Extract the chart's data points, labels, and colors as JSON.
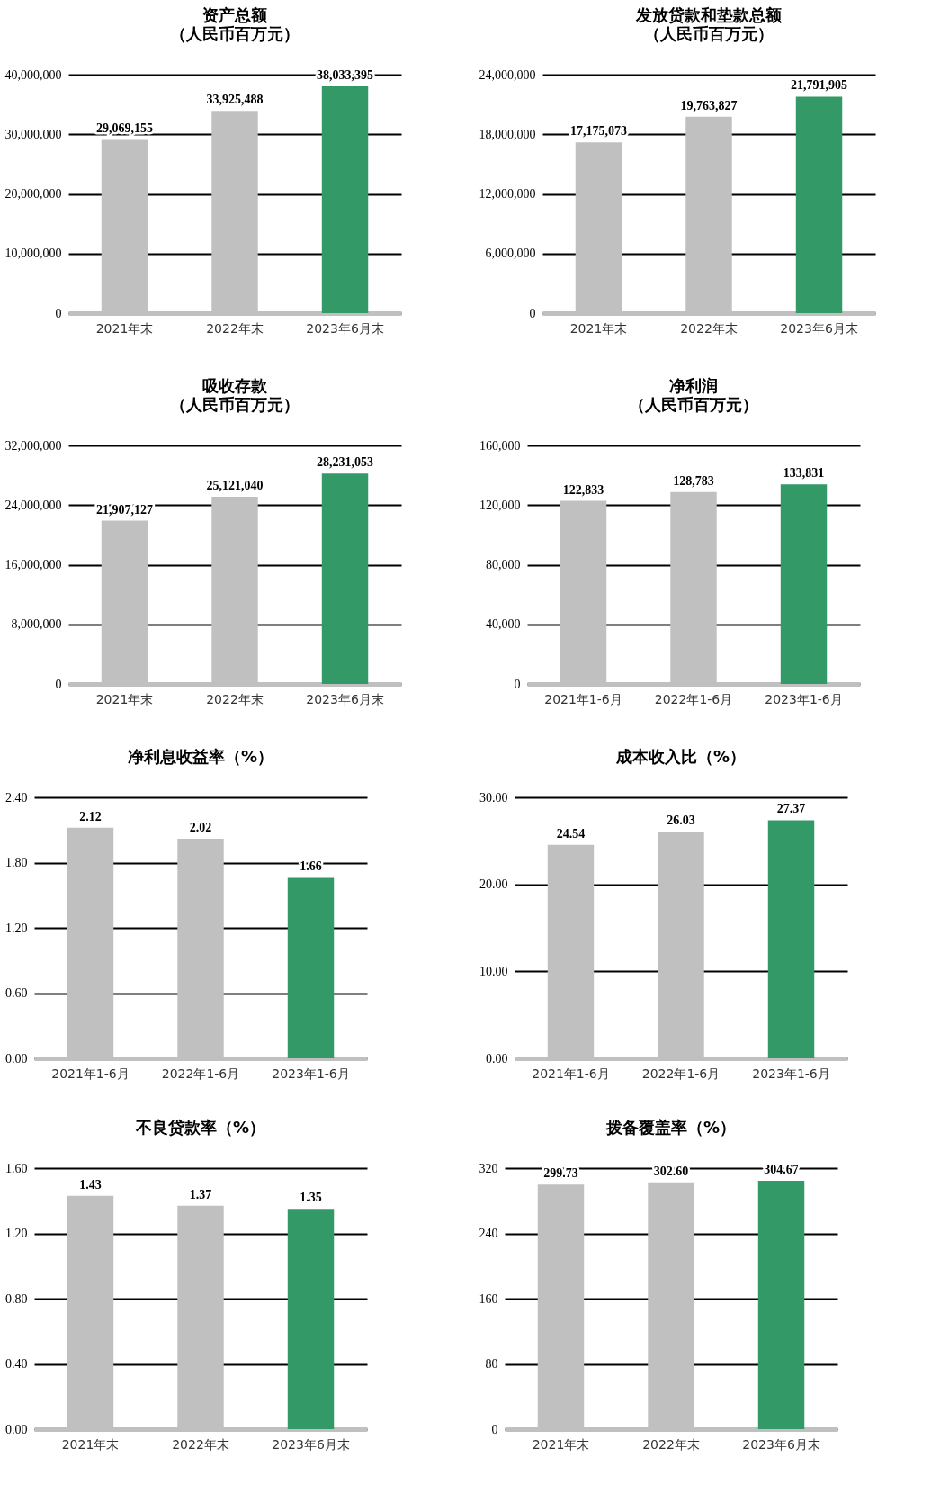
{
  "chart_data": [
    {
      "type": "bar",
      "title": "资产总额",
      "subtitle": "（人民币百万元）",
      "categories": [
        "2021年末",
        "2022年末",
        "2023年6月末"
      ],
      "values": [
        29069155,
        33925488,
        38033395
      ],
      "value_labels": [
        "29,069,155",
        "33,925,488",
        "38,033,395"
      ],
      "colors": [
        "#c0c0c0",
        "#c0c0c0",
        "#339966"
      ],
      "ylim": [
        0,
        40000000
      ],
      "yticks": [
        {
          "value": 0,
          "label": "0"
        },
        {
          "value": 10000000,
          "label": "10,000,000"
        },
        {
          "value": 20000000,
          "label": "20,000,000"
        },
        {
          "value": 30000000,
          "label": "30,000,000"
        },
        {
          "value": 40000000,
          "label": "40,000,000"
        }
      ],
      "grid": "y"
    },
    {
      "type": "bar",
      "title": "发放贷款和垫款总额",
      "subtitle": "（人民币百万元）",
      "categories": [
        "2021年末",
        "2022年末",
        "2023年6月末"
      ],
      "values": [
        17175073,
        19763827,
        21791905
      ],
      "value_labels": [
        "17,175,073",
        "19,763,827",
        "21,791,905"
      ],
      "colors": [
        "#c0c0c0",
        "#c0c0c0",
        "#339966"
      ],
      "ylim": [
        0,
        24000000
      ],
      "yticks": [
        {
          "value": 0,
          "label": "0"
        },
        {
          "value": 6000000,
          "label": "6,000,000"
        },
        {
          "value": 12000000,
          "label": "12,000,000"
        },
        {
          "value": 18000000,
          "label": "18,000,000"
        },
        {
          "value": 24000000,
          "label": "24,000,000"
        }
      ],
      "grid": "y"
    },
    {
      "type": "bar",
      "title": "吸收存款",
      "subtitle": "（人民币百万元）",
      "categories": [
        "2021年末",
        "2022年末",
        "2023年6月末"
      ],
      "values": [
        21907127,
        25121040,
        28231053
      ],
      "value_labels": [
        "21,907,127",
        "25,121,040",
        "28,231,053"
      ],
      "colors": [
        "#c0c0c0",
        "#c0c0c0",
        "#339966"
      ],
      "ylim": [
        0,
        32000000
      ],
      "yticks": [
        {
          "value": 0,
          "label": "0"
        },
        {
          "value": 8000000,
          "label": "8,000,000"
        },
        {
          "value": 16000000,
          "label": "16,000,000"
        },
        {
          "value": 24000000,
          "label": "24,000,000"
        },
        {
          "value": 32000000,
          "label": "32,000,000"
        }
      ],
      "grid": "y"
    },
    {
      "type": "bar",
      "title": "净利润",
      "subtitle": "（人民币百万元）",
      "categories": [
        "2021年1-6月",
        "2022年1-6月",
        "2023年1-6月"
      ],
      "values": [
        122833,
        128783,
        133831
      ],
      "value_labels": [
        "122,833",
        "128,783",
        "133,831"
      ],
      "colors": [
        "#c0c0c0",
        "#c0c0c0",
        "#339966"
      ],
      "ylim": [
        0,
        160000
      ],
      "yticks": [
        {
          "value": 0,
          "label": "0"
        },
        {
          "value": 40000,
          "label": "40,000"
        },
        {
          "value": 80000,
          "label": "80,000"
        },
        {
          "value": 120000,
          "label": "120,000"
        },
        {
          "value": 160000,
          "label": "160,000"
        }
      ],
      "grid": "y"
    },
    {
      "type": "bar",
      "title": "净利息收益率（%）",
      "categories": [
        "2021年1-6月",
        "2022年1-6月",
        "2023年1-6月"
      ],
      "values": [
        2.12,
        2.02,
        1.66
      ],
      "value_labels": [
        "2.12",
        "2.02",
        "1.66"
      ],
      "colors": [
        "#c0c0c0",
        "#c0c0c0",
        "#339966"
      ],
      "ylim": [
        0,
        2.4
      ],
      "yticks": [
        {
          "value": 0,
          "label": "0.00"
        },
        {
          "value": 0.6,
          "label": "0.60"
        },
        {
          "value": 1.2,
          "label": "1.20"
        },
        {
          "value": 1.8,
          "label": "1.80"
        },
        {
          "value": 2.4,
          "label": "2.40"
        }
      ],
      "grid": "y"
    },
    {
      "type": "bar",
      "title": "成本收入比（%）",
      "categories": [
        "2021年1-6月",
        "2022年1-6月",
        "2023年1-6月"
      ],
      "values": [
        24.54,
        26.03,
        27.37
      ],
      "value_labels": [
        "24.54",
        "26.03",
        "27.37"
      ],
      "colors": [
        "#c0c0c0",
        "#c0c0c0",
        "#339966"
      ],
      "ylim": [
        0,
        30
      ],
      "yticks": [
        {
          "value": 0,
          "label": "0.00"
        },
        {
          "value": 10,
          "label": "10.00"
        },
        {
          "value": 20,
          "label": "20.00"
        },
        {
          "value": 30,
          "label": "30.00"
        }
      ],
      "grid": "y"
    },
    {
      "type": "bar",
      "title": "不良贷款率（%）",
      "categories": [
        "2021年末",
        "2022年末",
        "2023年6月末"
      ],
      "values": [
        1.43,
        1.37,
        1.35
      ],
      "value_labels": [
        "1.43",
        "1.37",
        "1.35"
      ],
      "colors": [
        "#c0c0c0",
        "#c0c0c0",
        "#339966"
      ],
      "ylim": [
        0,
        1.6
      ],
      "yticks": [
        {
          "value": 0,
          "label": "0.00"
        },
        {
          "value": 0.4,
          "label": "0.40"
        },
        {
          "value": 0.8,
          "label": "0.80"
        },
        {
          "value": 1.2,
          "label": "1.20"
        },
        {
          "value": 1.6,
          "label": "1.60"
        }
      ],
      "grid": "y"
    },
    {
      "type": "bar",
      "title": "拨备覆盖率（%）",
      "categories": [
        "2021年末",
        "2022年末",
        "2023年6月末"
      ],
      "values": [
        299.73,
        302.6,
        304.67
      ],
      "value_labels": [
        "299.73",
        "302.60",
        "304.67"
      ],
      "colors": [
        "#c0c0c0",
        "#c0c0c0",
        "#339966"
      ],
      "ylim": [
        0,
        320
      ],
      "yticks": [
        {
          "value": 0,
          "label": "0"
        },
        {
          "value": 80,
          "label": "80"
        },
        {
          "value": 160,
          "label": "160"
        },
        {
          "value": 240,
          "label": "240"
        },
        {
          "value": 320,
          "label": "320"
        }
      ],
      "grid": "y"
    }
  ]
}
